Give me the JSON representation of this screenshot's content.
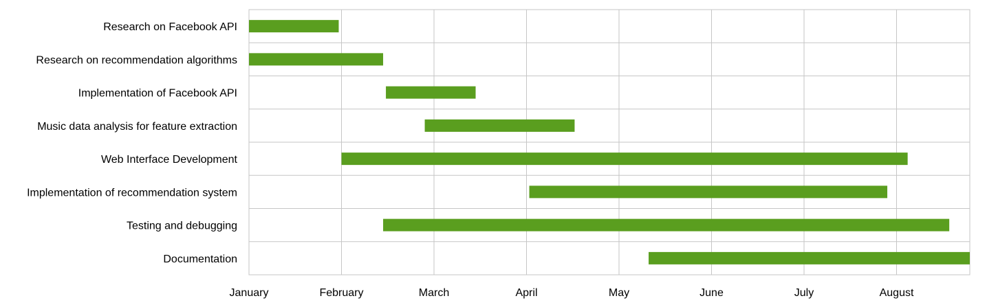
{
  "chart_data": {
    "type": "bar",
    "orientation": "horizontal-gantt",
    "title": "",
    "xlabel": "",
    "ylabel": "",
    "x_ticks": [
      "January",
      "February",
      "March",
      "April",
      "May",
      "June",
      "July",
      "August"
    ],
    "xlim": [
      0,
      7.8
    ],
    "grid": true,
    "legend": "none",
    "bar_color": "#5a9e1f",
    "tasks": [
      {
        "label": "Research on Facebook API",
        "start": 0.0,
        "end": 0.97
      },
      {
        "label": "Research on recommendation algorithms",
        "start": 0.0,
        "end": 1.45
      },
      {
        "label": "Implementation of Facebook API",
        "start": 1.48,
        "end": 2.45
      },
      {
        "label": "Music data analysis for feature extraction",
        "start": 1.9,
        "end": 3.52
      },
      {
        "label": "Web Interface Development",
        "start": 1.0,
        "end": 7.12
      },
      {
        "label": "Implementation of recommendation system",
        "start": 3.03,
        "end": 6.9
      },
      {
        "label": "Testing and debugging",
        "start": 1.45,
        "end": 7.57
      },
      {
        "label": "Documentation",
        "start": 4.32,
        "end": 7.8
      }
    ]
  }
}
